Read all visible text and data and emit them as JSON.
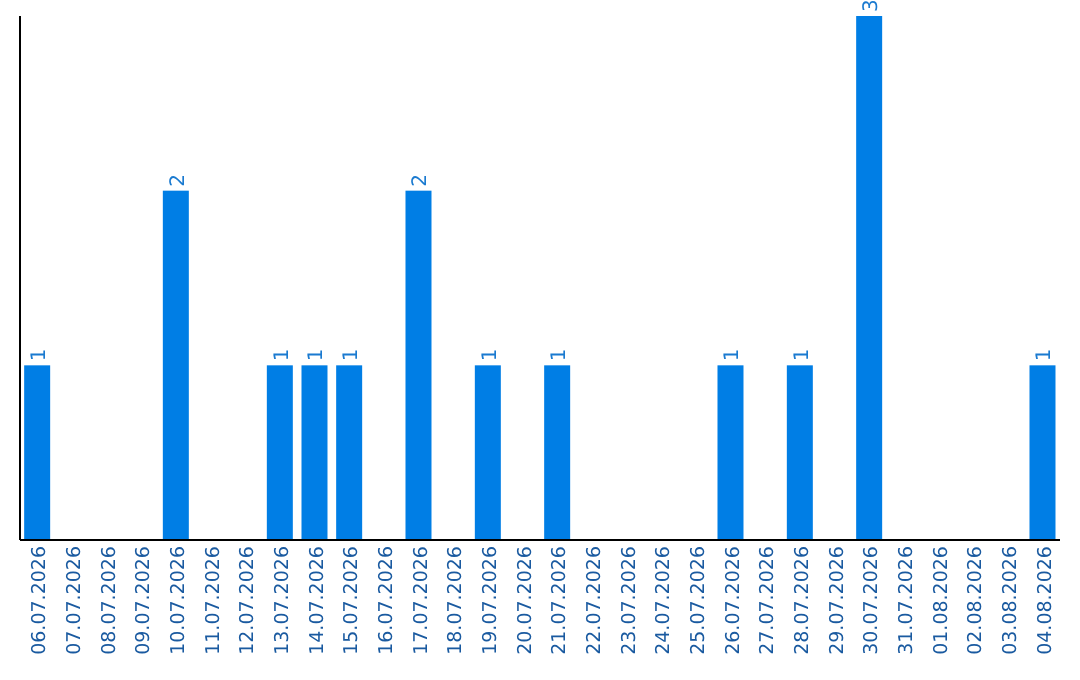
{
  "chart_data": {
    "type": "bar",
    "categories": [
      "06.07.2026",
      "07.07.2026",
      "08.07.2026",
      "09.07.2026",
      "10.07.2026",
      "11.07.2026",
      "12.07.2026",
      "13.07.2026",
      "14.07.2026",
      "15.07.2026",
      "16.07.2026",
      "17.07.2026",
      "18.07.2026",
      "19.07.2026",
      "20.07.2026",
      "21.07.2026",
      "22.07.2026",
      "23.07.2026",
      "24.07.2026",
      "25.07.2026",
      "26.07.2026",
      "27.07.2026",
      "28.07.2026",
      "29.07.2026",
      "30.07.2026",
      "31.07.2026",
      "01.08.2026",
      "02.08.2026",
      "03.08.2026",
      "04.08.2026"
    ],
    "values": [
      1,
      0,
      0,
      0,
      2,
      0,
      0,
      1,
      1,
      1,
      0,
      2,
      0,
      1,
      0,
      1,
      0,
      0,
      0,
      0,
      1,
      0,
      1,
      0,
      3,
      0,
      0,
      0,
      0,
      1
    ],
    "value_labels": [
      "1",
      null,
      null,
      null,
      "2",
      null,
      null,
      "1",
      "1",
      "1",
      null,
      "2",
      null,
      "1",
      null,
      "1",
      null,
      null,
      null,
      null,
      "1",
      null,
      "1",
      null,
      "3",
      null,
      null,
      null,
      null,
      "1"
    ],
    "color": "#007ee5"
  }
}
